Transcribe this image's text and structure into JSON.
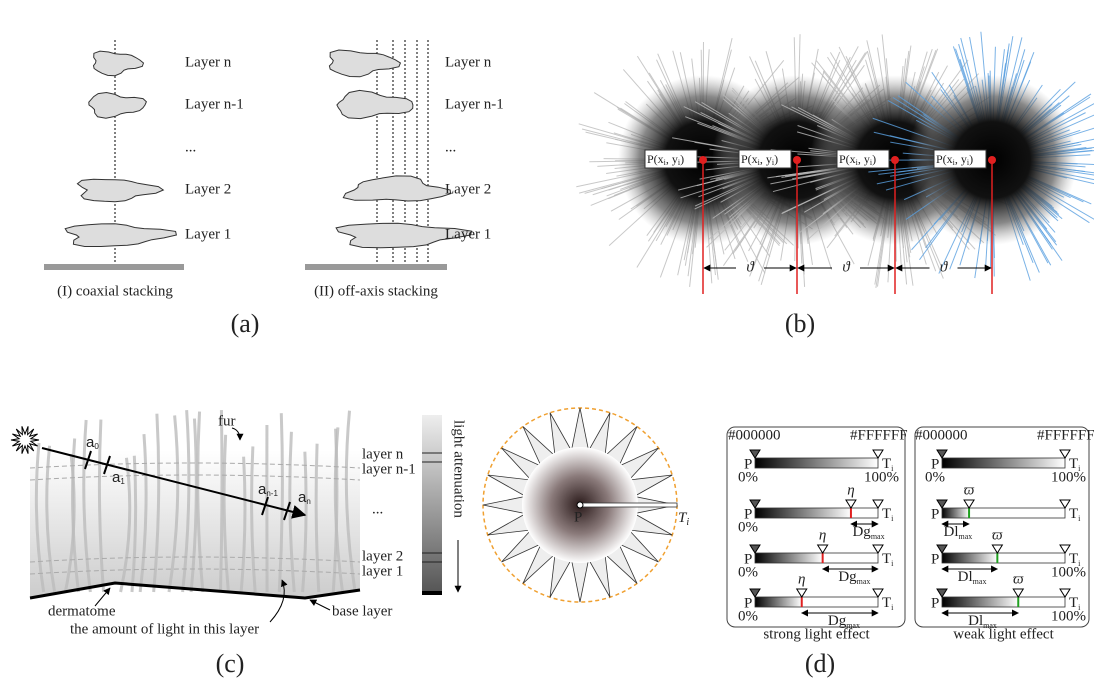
{
  "panel_a": {
    "layers": [
      "Layer n",
      "Layer n-1",
      "...",
      "Layer 2",
      "Layer 1"
    ],
    "captions": [
      "(I) coaxial stacking",
      "(II) off-axis stacking"
    ],
    "label": "(a)"
  },
  "panel_b": {
    "point_label": [
      "P(x",
      "i",
      ", y",
      "i",
      ")"
    ],
    "spacing_symbol": "ϑ",
    "label": "(b)"
  },
  "panel_c": {
    "fur": "fur",
    "layers": [
      "layer n",
      "layer n-1",
      "...",
      "layer 2",
      "layer 1"
    ],
    "points": [
      {
        "main": "a",
        "sub": "0"
      },
      {
        "main": "a",
        "sub": "1"
      },
      {
        "main": "a",
        "sub": "n-1"
      },
      {
        "main": "a",
        "sub": "n"
      }
    ],
    "attenuation": "light attenuation",
    "dermatome": "dermatome",
    "amount": "the amount of light in this layer",
    "base_layer": "base layer",
    "label": "(c)"
  },
  "panel_d": {
    "center_label": "P",
    "tip_label": {
      "main": "T",
      "sub": "i"
    },
    "black": "#000000",
    "white": "#FFFFFF",
    "start": "P",
    "end": {
      "main": "T",
      "sub": "i"
    },
    "zero": "0%",
    "full": "100%",
    "strong_symbol": "η",
    "strong_distance": {
      "main": "Dg",
      "sub": "max"
    },
    "weak_symbol": "ϖ",
    "weak_distance": {
      "main": "Dl",
      "sub": "max"
    },
    "captions": [
      "strong light effect",
      "weak light effect"
    ],
    "label": "(d)"
  }
}
